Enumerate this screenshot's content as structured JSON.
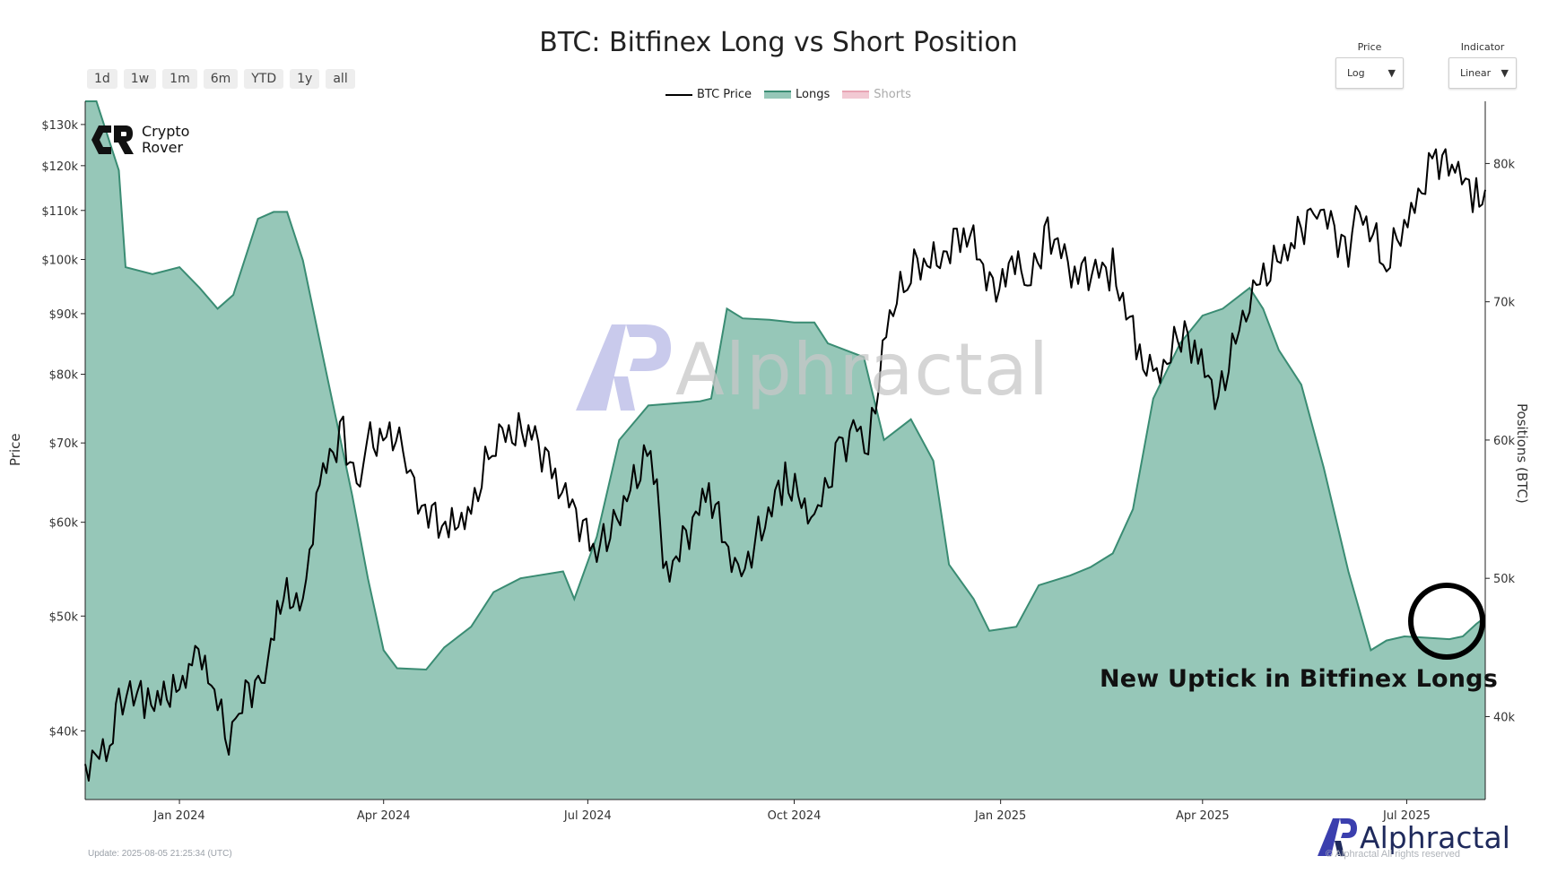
{
  "title": "BTC: Bitfinex Long vs Short Position",
  "range_buttons": [
    "1d",
    "1w",
    "1m",
    "6m",
    "YTD",
    "1y",
    "all"
  ],
  "controls": {
    "price": {
      "label": "Price",
      "value": "Log"
    },
    "indicator": {
      "label": "Indicator",
      "value": "Linear"
    }
  },
  "legend": [
    {
      "label": "BTC Price",
      "color": "#000000"
    },
    {
      "label": "Longs",
      "color": "#2e8b6e"
    },
    {
      "label": "Shorts",
      "color": "#e8a4b4"
    }
  ],
  "brand": {
    "line1": "Crypto",
    "line2": "Rover"
  },
  "watermark": "Alphractal",
  "annotation": "New Uptick in Bitfinex Longs",
  "update_text": "Update: 2025-08-05 21:25:34 (UTC)",
  "copyright": "© Alphractal All rights reserved",
  "footer_logo": "Alphractal",
  "colors": {
    "longs_fill": "#96c7b8",
    "longs_line": "#3a8c73",
    "price_line": "#000000"
  },
  "chart_data": {
    "type": "line",
    "title": "BTC: Bitfinex Long vs Short Position",
    "x_ticks": [
      "Jan 2024",
      "Apr 2024",
      "Jul 2024",
      "Oct 2024",
      "Jan 2025",
      "Apr 2025",
      "Jul 2025"
    ],
    "x_range": [
      "2023-11-20",
      "2025-08-05"
    ],
    "y_left": {
      "label": "Price",
      "scale": "log",
      "range": [
        35000,
        136000
      ],
      "ticks": [
        40000,
        50000,
        60000,
        70000,
        80000,
        90000,
        100000,
        110000,
        120000,
        130000
      ],
      "tick_labels": [
        "$40k",
        "$50k",
        "$60k",
        "$70k",
        "$80k",
        "$90k",
        "$100k",
        "$110k",
        "$120k",
        "$130k"
      ]
    },
    "y_right": {
      "label": "Positions (BTC)",
      "scale": "linear",
      "range": [
        34000,
        84500
      ],
      "ticks": [
        40000,
        50000,
        60000,
        70000,
        80000
      ],
      "tick_labels": [
        "40k",
        "50k",
        "60k",
        "70k",
        "80k"
      ]
    },
    "series": [
      {
        "name": "BTC Price",
        "axis": "left",
        "points": [
          [
            "2023-11-20",
            37500
          ],
          [
            "2023-12-01",
            38700
          ],
          [
            "2023-12-05",
            42000
          ],
          [
            "2023-12-10",
            43500
          ],
          [
            "2023-12-18",
            41800
          ],
          [
            "2023-12-25",
            43200
          ],
          [
            "2024-01-01",
            42800
          ],
          [
            "2024-01-08",
            46500
          ],
          [
            "2024-01-11",
            46000
          ],
          [
            "2024-01-18",
            41800
          ],
          [
            "2024-01-23",
            39500
          ],
          [
            "2024-01-29",
            42500
          ],
          [
            "2024-02-08",
            44800
          ],
          [
            "2024-02-15",
            51800
          ],
          [
            "2024-02-25",
            51500
          ],
          [
            "2024-02-28",
            57500
          ],
          [
            "2024-03-05",
            66000
          ],
          [
            "2024-03-14",
            72000
          ],
          [
            "2024-03-20",
            63500
          ],
          [
            "2024-03-26",
            70000
          ],
          [
            "2024-04-08",
            71500
          ],
          [
            "2024-04-13",
            64800
          ],
          [
            "2024-04-18",
            62000
          ],
          [
            "2024-04-30",
            59000
          ],
          [
            "2024-05-10",
            61500
          ],
          [
            "2024-05-21",
            71000
          ],
          [
            "2024-06-06",
            71500
          ],
          [
            "2024-06-18",
            65000
          ],
          [
            "2024-07-05",
            56500
          ],
          [
            "2024-07-14",
            60500
          ],
          [
            "2024-07-29",
            69500
          ],
          [
            "2024-08-05",
            54000
          ],
          [
            "2024-08-24",
            64000
          ],
          [
            "2024-09-06",
            53500
          ],
          [
            "2024-09-27",
            65500
          ],
          [
            "2024-10-10",
            60200
          ],
          [
            "2024-10-21",
            69000
          ],
          [
            "2024-10-29",
            72500
          ],
          [
            "2024-11-03",
            68500
          ],
          [
            "2024-11-11",
            88000
          ],
          [
            "2024-11-22",
            98500
          ],
          [
            "2024-12-05",
            100000
          ],
          [
            "2024-12-17",
            106500
          ],
          [
            "2024-12-30",
            92500
          ],
          [
            "2025-01-06",
            102000
          ],
          [
            "2025-01-13",
            94500
          ],
          [
            "2025-01-22",
            106000
          ],
          [
            "2025-02-03",
            97500
          ],
          [
            "2025-02-20",
            98000
          ],
          [
            "2025-03-04",
            83500
          ],
          [
            "2025-03-10",
            78500
          ],
          [
            "2025-03-24",
            87500
          ],
          [
            "2025-03-30",
            82500
          ],
          [
            "2025-04-08",
            76500
          ],
          [
            "2025-04-22",
            93500
          ],
          [
            "2025-05-12",
            104000
          ],
          [
            "2025-05-22",
            111500
          ],
          [
            "2025-06-05",
            101500
          ],
          [
            "2025-06-10",
            110000
          ],
          [
            "2025-06-22",
            99500
          ],
          [
            "2025-07-03",
            109500
          ],
          [
            "2025-07-14",
            122500
          ],
          [
            "2025-07-24",
            118000
          ],
          [
            "2025-08-01",
            113000
          ],
          [
            "2025-08-05",
            114500
          ]
        ]
      },
      {
        "name": "Longs",
        "axis": "right",
        "type": "area",
        "points": [
          [
            "2023-11-20",
            84500
          ],
          [
            "2023-11-25",
            84500
          ],
          [
            "2023-12-05",
            79500
          ],
          [
            "2023-12-08",
            72500
          ],
          [
            "2023-12-20",
            72000
          ],
          [
            "2024-01-01",
            72500
          ],
          [
            "2024-01-10",
            71000
          ],
          [
            "2024-01-18",
            69500
          ],
          [
            "2024-01-25",
            70500
          ],
          [
            "2024-02-05",
            76000
          ],
          [
            "2024-02-12",
            76500
          ],
          [
            "2024-02-18",
            76500
          ],
          [
            "2024-02-25",
            73000
          ],
          [
            "2024-03-05",
            66000
          ],
          [
            "2024-03-18",
            56000
          ],
          [
            "2024-03-25",
            50000
          ],
          [
            "2024-04-01",
            44800
          ],
          [
            "2024-04-07",
            43500
          ],
          [
            "2024-04-20",
            43400
          ],
          [
            "2024-04-28",
            45000
          ],
          [
            "2024-05-10",
            46500
          ],
          [
            "2024-05-20",
            49000
          ],
          [
            "2024-06-01",
            50000
          ],
          [
            "2024-06-20",
            50500
          ],
          [
            "2024-06-25",
            48500
          ],
          [
            "2024-07-05",
            53000
          ],
          [
            "2024-07-15",
            60000
          ],
          [
            "2024-07-28",
            62500
          ],
          [
            "2024-08-20",
            62800
          ],
          [
            "2024-08-25",
            63000
          ],
          [
            "2024-09-01",
            69500
          ],
          [
            "2024-09-08",
            68800
          ],
          [
            "2024-09-20",
            68700
          ],
          [
            "2024-10-01",
            68500
          ],
          [
            "2024-10-10",
            68500
          ],
          [
            "2024-10-16",
            67000
          ],
          [
            "2024-11-01",
            66000
          ],
          [
            "2024-11-10",
            60000
          ],
          [
            "2024-11-22",
            61500
          ],
          [
            "2024-12-02",
            58500
          ],
          [
            "2024-12-09",
            51000
          ],
          [
            "2024-12-20",
            48500
          ],
          [
            "2024-12-27",
            46200
          ],
          [
            "2025-01-08",
            46500
          ],
          [
            "2025-01-18",
            49500
          ],
          [
            "2025-02-01",
            50200
          ],
          [
            "2025-02-10",
            50800
          ],
          [
            "2025-02-20",
            51800
          ],
          [
            "2025-03-01",
            55000
          ],
          [
            "2025-03-10",
            63000
          ],
          [
            "2025-03-22",
            67000
          ],
          [
            "2025-04-01",
            69000
          ],
          [
            "2025-04-10",
            69500
          ],
          [
            "2025-04-22",
            71000
          ],
          [
            "2025-04-28",
            69500
          ],
          [
            "2025-05-05",
            66500
          ],
          [
            "2025-05-15",
            64000
          ],
          [
            "2025-05-25",
            58000
          ],
          [
            "2025-06-05",
            50500
          ],
          [
            "2025-06-15",
            44800
          ],
          [
            "2025-06-22",
            45500
          ],
          [
            "2025-06-30",
            45800
          ],
          [
            "2025-07-10",
            45700
          ],
          [
            "2025-07-20",
            45600
          ],
          [
            "2025-07-26",
            45800
          ],
          [
            "2025-08-01",
            46700
          ],
          [
            "2025-08-05",
            47200
          ]
        ]
      },
      {
        "name": "Shorts",
        "axis": "right",
        "points": []
      }
    ]
  }
}
